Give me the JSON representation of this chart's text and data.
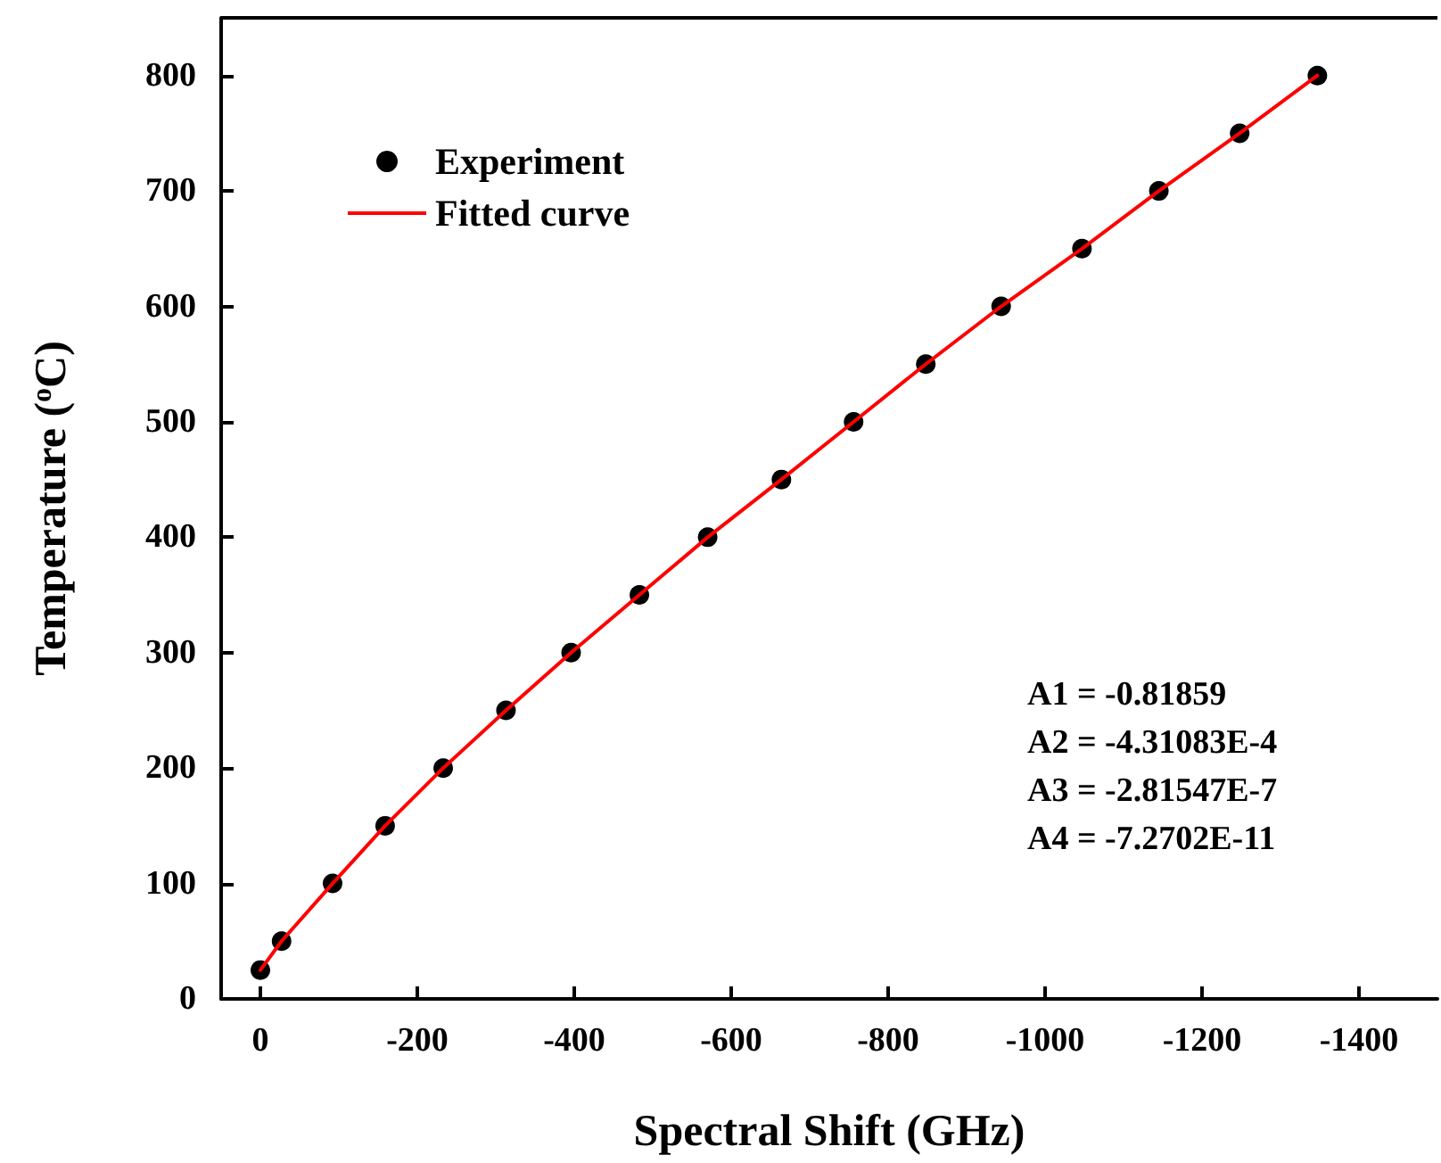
{
  "chart_data": {
    "type": "scatter",
    "xlabel": "Spectral Shift (GHz)",
    "ylabel": "Temperature ($^{o}$C)",
    "xlim": [
      50,
      -1500
    ],
    "xticks": [
      0,
      -200,
      -400,
      -600,
      -800,
      -1000,
      -1200,
      -1400
    ],
    "ylim": [
      0,
      850
    ],
    "yticks": [
      0,
      100,
      200,
      300,
      400,
      500,
      600,
      700,
      800
    ],
    "grid": false,
    "legend": "top left",
    "series": [
      {
        "name": "Experiment",
        "marker": "circle",
        "color": "#000000",
        "x": [
          0,
          -27,
          -92,
          -159,
          -233,
          -313,
          -396,
          -483,
          -570,
          -664,
          -756,
          -848,
          -944,
          -1047,
          -1145,
          -1248,
          -1347
        ],
        "values": [
          25,
          50,
          100,
          150,
          200,
          250,
          300,
          350,
          400,
          450,
          500,
          550,
          600,
          650,
          700,
          750,
          800
        ]
      },
      {
        "name": "Fitted curve",
        "type": "line",
        "color": "#ff0000",
        "line_style": "solid",
        "x": [
          0,
          -27,
          -92,
          -159,
          -233,
          -313,
          -396,
          -483,
          -570,
          -664,
          -756,
          -848,
          -944,
          -1047,
          -1145,
          -1248,
          -1347
        ],
        "values": [
          25,
          50,
          100,
          150,
          200,
          250,
          300,
          350,
          400,
          450,
          500,
          550,
          600,
          650,
          700,
          750,
          800
        ]
      }
    ],
    "annotations": [
      "A1 = -0.81859",
      "A2 = -4.31083E-4",
      "A3 = -2.81547E-7",
      "A4 = -7.2702E-11"
    ]
  }
}
